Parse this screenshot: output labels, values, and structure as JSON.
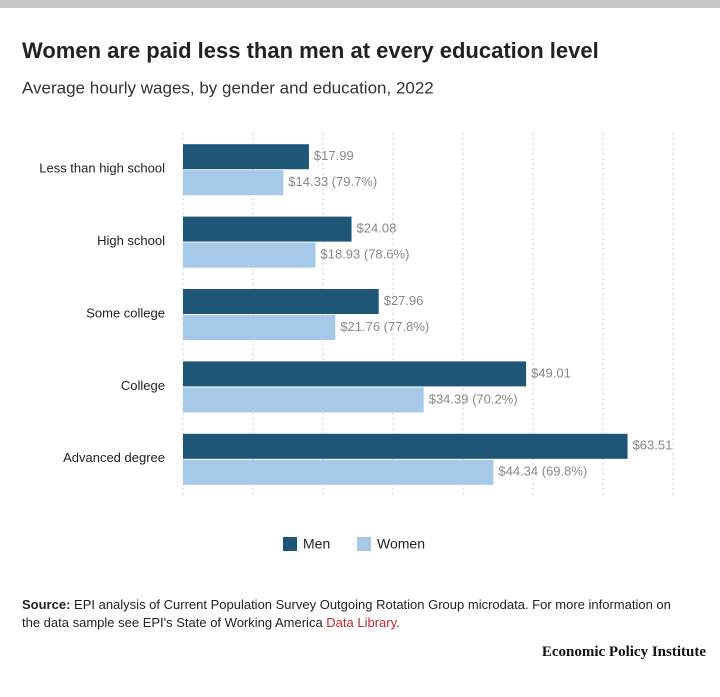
{
  "chart_data": {
    "type": "hbar",
    "title": "Women are paid less than men at every education level",
    "subtitle": "Average hourly wages, by gender and education, 2022",
    "categories": [
      "Less than high school",
      "High school",
      "Some college",
      "College",
      "Advanced degree"
    ],
    "series": [
      {
        "name": "Men",
        "color": "#1e5677",
        "values": [
          17.99,
          24.08,
          27.96,
          49.01,
          63.51
        ],
        "value_labels": [
          "$17.99",
          "$24.08",
          "$27.96",
          "$49.01",
          "$63.51"
        ]
      },
      {
        "name": "Women",
        "color": "#a6c9ea",
        "values": [
          14.33,
          18.93,
          21.76,
          34.39,
          44.34
        ],
        "value_labels": [
          "$14.33 (79.7%)",
          "$18.93 (78.6%)",
          "$21.76 (77.8%)",
          "$34.39 (70.2%)",
          "$44.34 (69.8%)"
        ]
      }
    ],
    "xlim": [
      0,
      70
    ],
    "xticks": [
      0,
      10,
      20,
      30,
      40,
      50,
      60,
      70
    ],
    "grid": true
  },
  "footer": {
    "source_label": "Source:",
    "source_text": "EPI analysis of Current Population Survey Outgoing Rotation Group microdata. For more information on the data sample see EPI's State of Working America",
    "link": "Data Library",
    "end": ".",
    "logo": "Economic Policy Institute"
  }
}
